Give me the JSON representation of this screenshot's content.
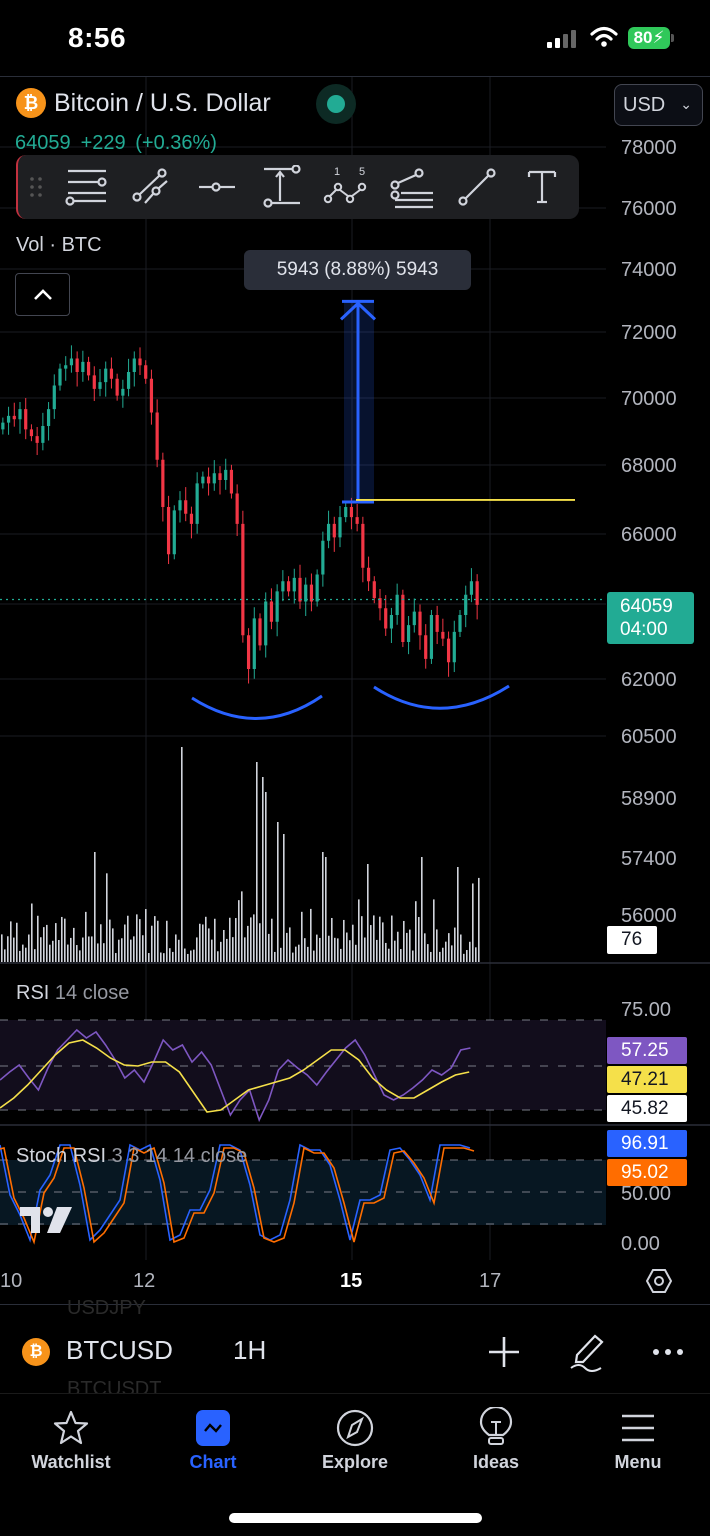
{
  "status_bar": {
    "time": "8:56",
    "battery": "80"
  },
  "header": {
    "title": "Bitcoin / U.S. Dollar",
    "price": "64059",
    "change": "+229",
    "change_pct": "(+0.36%)",
    "currency": "USD",
    "market_status": "open"
  },
  "drawing_toolbar": {
    "tools": [
      "horizontal-lines-tool",
      "parallel-channel-tool",
      "horizontal-ray-tool",
      "price-range-tool",
      "elliott-wave-tool",
      "pitchfork-tool",
      "trend-line-tool",
      "text-tool"
    ]
  },
  "volume": {
    "label": "Vol · BTC",
    "value": "76"
  },
  "measure": {
    "label": "5943 (8.88%) 5943"
  },
  "price_axis": {
    "labels": [
      "78000",
      "76000",
      "74000",
      "72000",
      "70000",
      "68000",
      "66000",
      "62000",
      "60500",
      "58900",
      "57400",
      "56000"
    ],
    "last_price": "64059",
    "countdown": "04:00"
  },
  "rsi": {
    "title": "RSI",
    "args": "14 close",
    "axis_label": "75.00",
    "rsi_value": "57.25",
    "ma_value": "47.21",
    "other_value": "45.82",
    "colors": {
      "rsi": "#7e57c2",
      "ma": "#f5e04a"
    }
  },
  "stoch_rsi": {
    "title": "Stoch RSI",
    "args": "3 3 14 14 close",
    "k_value": "96.91",
    "d_value": "95.02",
    "axis_labels": [
      "50.00",
      "0.00"
    ],
    "colors": {
      "k": "#2962ff",
      "d": "#ff6d00"
    }
  },
  "time_axis": {
    "labels": [
      "10",
      "12",
      "15",
      "17"
    ]
  },
  "symbol_bar": {
    "symbol": "BTCUSD",
    "interval": "1H",
    "ghost_above": "USDJPY",
    "ghost_below": "BTCUSDT"
  },
  "tab_bar": {
    "tabs": [
      {
        "label": "Watchlist",
        "icon": "star-icon"
      },
      {
        "label": "Chart",
        "icon": "chart-icon",
        "active": true
      },
      {
        "label": "Explore",
        "icon": "compass-icon"
      },
      {
        "label": "Ideas",
        "icon": "lightbulb-icon"
      },
      {
        "label": "Menu",
        "icon": "menu-icon"
      }
    ]
  },
  "colors": {
    "up": "#22ab94",
    "down": "#f23645",
    "accent": "#2962ff",
    "hline": "#f5e04a"
  },
  "chart_data": {
    "type": "candlestick",
    "title": "Bitcoin / U.S. Dollar, 1H",
    "x_ticks": [
      "10",
      "12",
      "15",
      "17"
    ],
    "y_ticks": [
      78000,
      76000,
      74000,
      72000,
      70000,
      68000,
      66000,
      62000,
      60500,
      58900,
      57400,
      56000
    ],
    "last_price": 64059,
    "closes": [
      69300,
      69500,
      69400,
      69700,
      69100,
      68900,
      68700,
      69200,
      69700,
      70400,
      70900,
      71000,
      71200,
      70800,
      71100,
      70700,
      70300,
      70500,
      70900,
      70600,
      70100,
      70300,
      70800,
      71200,
      71000,
      70600,
      69600,
      68200,
      66800,
      65400,
      66700,
      67000,
      66600,
      66300,
      67500,
      67700,
      67500,
      67800,
      67600,
      67900,
      67200,
      66300,
      63000,
      62000,
      63500,
      62700,
      64000,
      63400,
      64300,
      64600,
      64300,
      64700,
      64000,
      64500,
      64000,
      64800,
      65800,
      66300,
      65900,
      66500,
      66800,
      66500,
      66300,
      65000,
      64600,
      64100,
      63800,
      63200,
      63600,
      64200,
      62800,
      63300,
      63700,
      63000,
      62300,
      63600,
      63100,
      62900,
      62200,
      63100,
      63600,
      64200,
      64600,
      63900
    ],
    "annotations": {
      "measure_arrow": {
        "from": 66950,
        "to": 72893,
        "label": "5943 (8.88%) 5943"
      },
      "horizontal_line": 66950,
      "arcs": [
        "left-shoulder/cup",
        "right cup"
      ]
    },
    "volume_last": 76,
    "rsi": {
      "value": 57.25,
      "ma": 47.21,
      "levels": [
        70,
        50,
        30
      ]
    },
    "stoch_rsi": {
      "k": 96.91,
      "d": 95.02,
      "levels": [
        80,
        50,
        20
      ]
    }
  }
}
